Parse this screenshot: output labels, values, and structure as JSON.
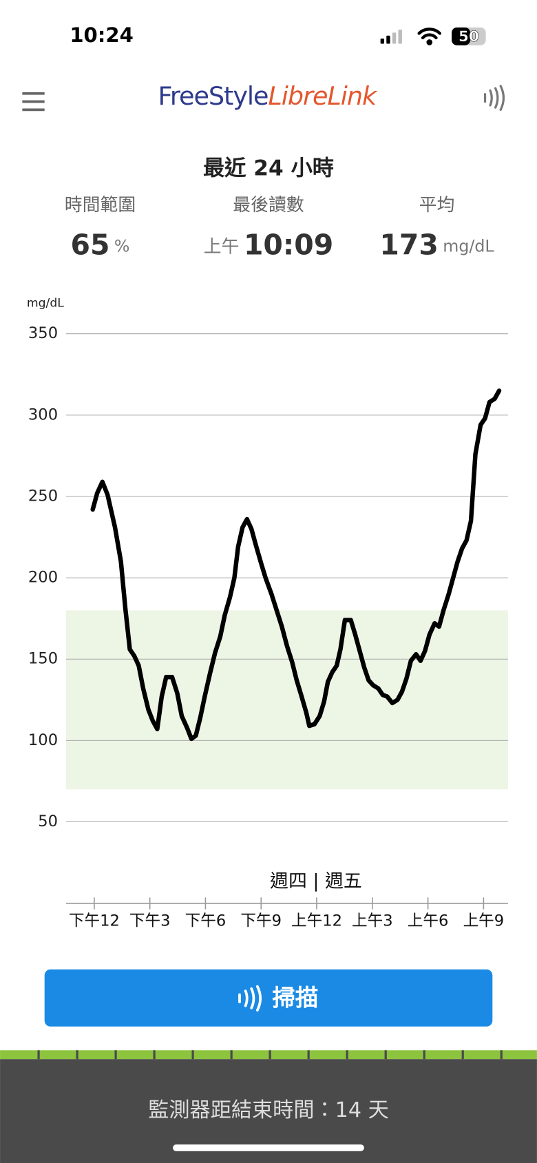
{
  "status_bar": {
    "time": "10:24",
    "battery": "50"
  },
  "header": {
    "brand_part1": "FreeStyle",
    "brand_part2": "LibreLink"
  },
  "period_title": "最近 24 小時",
  "stats": [
    {
      "label": "時間範圍",
      "value": "65",
      "unit": "%"
    },
    {
      "label": "最後讀數",
      "prefix": "上午",
      "value": "10:09"
    },
    {
      "label": "平均",
      "value": "173",
      "unit": "mg/dL"
    }
  ],
  "chart_data": {
    "type": "line",
    "y_label": "mg/dL",
    "day_divider": "週四 | 週五",
    "ylim": [
      50,
      350
    ],
    "yticks": [
      50,
      100,
      150,
      200,
      250,
      300,
      350
    ],
    "grid": true,
    "target_range": [
      70,
      180
    ],
    "target_color": "#edf5e5",
    "xlim": [
      10.48,
      34.32
    ],
    "xticks": [
      {
        "value": 12,
        "label": "下午12"
      },
      {
        "value": 15,
        "label": "下午3"
      },
      {
        "value": 18,
        "label": "下午6"
      },
      {
        "value": 21,
        "label": "下午9"
      },
      {
        "value": 24,
        "label": "上午12"
      },
      {
        "value": 27,
        "label": "上午3"
      },
      {
        "value": 30,
        "label": "上午6"
      },
      {
        "value": 33,
        "label": "上午9"
      }
    ],
    "series": [
      {
        "color": "#000000",
        "x": [
          11.92,
          12.16,
          12.44,
          12.72,
          13.12,
          13.44,
          13.68,
          13.92,
          14.16,
          14.4,
          14.64,
          14.92,
          15.16,
          15.4,
          15.64,
          15.88,
          16.2,
          16.48,
          16.72,
          17.0,
          17.24,
          17.48,
          17.72,
          17.96,
          18.24,
          18.52,
          18.8,
          19.04,
          19.32,
          19.56,
          19.76,
          20.0,
          20.24,
          20.48,
          20.72,
          21.0,
          21.24,
          21.56,
          21.84,
          22.12,
          22.4,
          22.68,
          22.92,
          23.16,
          23.44,
          23.6,
          23.88,
          24.16,
          24.4,
          24.6,
          24.84,
          25.08,
          25.28,
          25.52,
          25.84,
          26.08,
          26.32,
          26.56,
          26.8,
          27.04,
          27.32,
          27.56,
          27.8,
          28.08,
          28.36,
          28.6,
          28.84,
          29.08,
          29.36,
          29.6,
          29.84,
          30.08,
          30.36,
          30.6,
          30.84,
          31.12,
          31.36,
          31.6,
          31.84,
          32.08,
          32.32,
          32.56,
          32.84,
          33.08,
          33.32,
          33.6,
          33.84
        ],
        "values": [
          242,
          252,
          259,
          251,
          231,
          210,
          181,
          156,
          152,
          146,
          132,
          119,
          112,
          107,
          127,
          139,
          139,
          129,
          115,
          108,
          101,
          103,
          114,
          127,
          141,
          154,
          164,
          177,
          188,
          200,
          219,
          231,
          236,
          230,
          220,
          209,
          200,
          190,
          180,
          170,
          158,
          148,
          137,
          128,
          117,
          109,
          110,
          115,
          124,
          136,
          142,
          146,
          156,
          174,
          174,
          165,
          155,
          145,
          137,
          134,
          132,
          128,
          127,
          123,
          125,
          130,
          138,
          149,
          153,
          149,
          155,
          165,
          172,
          170,
          180,
          190,
          200,
          210,
          218,
          223,
          235,
          276,
          294,
          298,
          308,
          310,
          315
        ]
      }
    ]
  },
  "button": {
    "label": "掃描"
  },
  "footer": {
    "text": "監測器距結束時間：14 天"
  }
}
